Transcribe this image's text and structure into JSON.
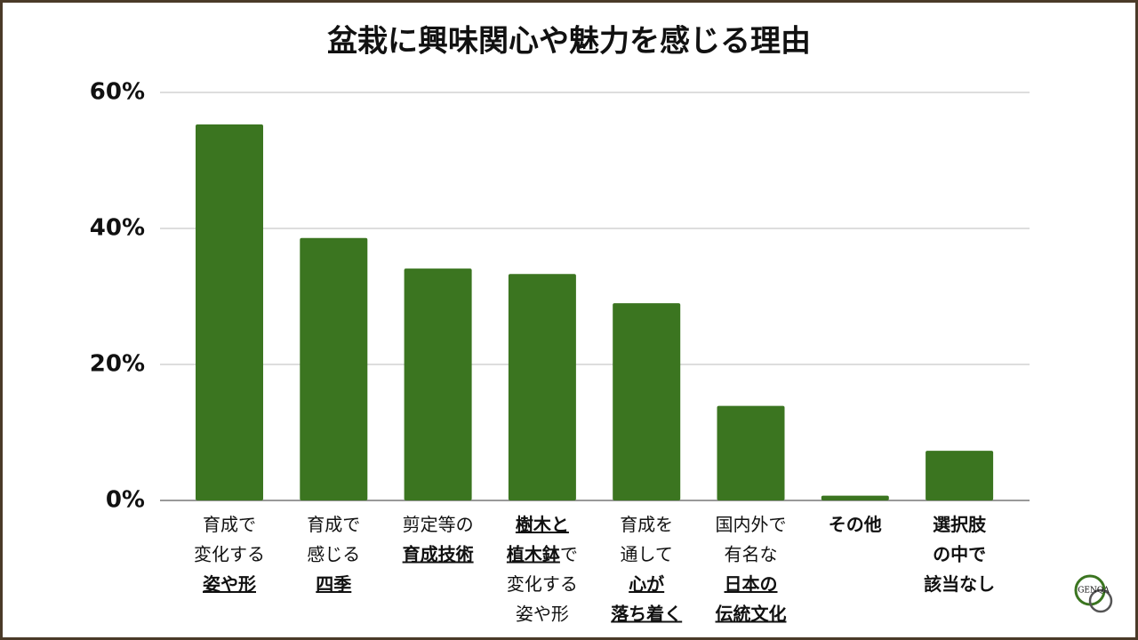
{
  "chart_data": {
    "type": "bar",
    "title": "盆栽に興味関心や魅力を感じる理由",
    "categories": [
      [
        [
          {
            "text": "育成で",
            "bold": false,
            "underline": false
          }
        ],
        [
          {
            "text": "変化する",
            "bold": false,
            "underline": false
          }
        ],
        [
          {
            "text": "姿や形",
            "bold": true,
            "underline": true
          }
        ]
      ],
      [
        [
          {
            "text": "育成で",
            "bold": false,
            "underline": false
          }
        ],
        [
          {
            "text": "感じる",
            "bold": false,
            "underline": false
          }
        ],
        [
          {
            "text": "四季",
            "bold": true,
            "underline": true
          }
        ]
      ],
      [
        [
          {
            "text": "剪定等の",
            "bold": false,
            "underline": false
          }
        ],
        [
          {
            "text": "育成技術",
            "bold": true,
            "underline": true
          }
        ]
      ],
      [
        [
          {
            "text": "樹木と",
            "bold": true,
            "underline": true
          }
        ],
        [
          {
            "text": "植木鉢",
            "bold": true,
            "underline": true
          },
          {
            "text": "で",
            "bold": false,
            "underline": false
          }
        ],
        [
          {
            "text": "変化する",
            "bold": false,
            "underline": false
          }
        ],
        [
          {
            "text": "姿や形",
            "bold": false,
            "underline": false
          }
        ]
      ],
      [
        [
          {
            "text": "育成を",
            "bold": false,
            "underline": false
          }
        ],
        [
          {
            "text": "通して",
            "bold": false,
            "underline": false
          }
        ],
        [
          {
            "text": "心が",
            "bold": true,
            "underline": true
          }
        ],
        [
          {
            "text": "落ち着く",
            "bold": true,
            "underline": true
          }
        ]
      ],
      [
        [
          {
            "text": "国内外で",
            "bold": false,
            "underline": false
          }
        ],
        [
          {
            "text": "有名な",
            "bold": false,
            "underline": false
          }
        ],
        [
          {
            "text": "日本の",
            "bold": true,
            "underline": true
          }
        ],
        [
          {
            "text": "伝統文化",
            "bold": true,
            "underline": true
          }
        ]
      ],
      [
        [
          {
            "text": "その他",
            "bold": true,
            "underline": false
          }
        ]
      ],
      [
        [
          {
            "text": "選択肢",
            "bold": true,
            "underline": false
          }
        ],
        [
          {
            "text": "の中で",
            "bold": true,
            "underline": false
          }
        ],
        [
          {
            "text": "該当なし",
            "bold": true,
            "underline": false
          }
        ]
      ]
    ],
    "values": [
      55.3,
      38.6,
      34.1,
      33.3,
      29.0,
      13.9,
      0.7,
      7.3
    ],
    "color": "#3b7520",
    "ylim": [
      0,
      60
    ],
    "yticks": [
      {
        "value": 0,
        "label": "0%"
      },
      {
        "value": 20,
        "label": "20%"
      },
      {
        "value": 40,
        "label": "40%"
      },
      {
        "value": 60,
        "label": "60%"
      }
    ],
    "grid": true,
    "logo": "GENQA"
  }
}
